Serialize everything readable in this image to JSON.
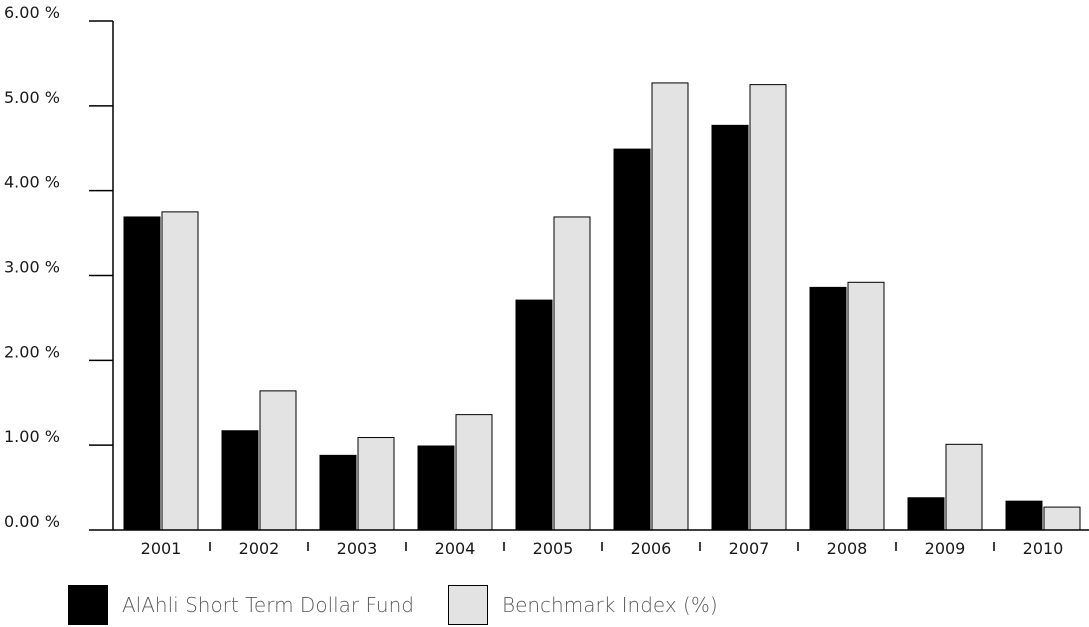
{
  "chart_data": {
    "type": "bar",
    "categories": [
      "2001",
      "2002",
      "2003",
      "2004",
      "2005",
      "2006",
      "2007",
      "2008",
      "2009",
      "2010"
    ],
    "series": [
      {
        "name": "AlAhli Short Term Dollar Fund",
        "color": "#000000",
        "values": [
          3.69,
          1.17,
          0.88,
          0.99,
          2.71,
          4.49,
          4.77,
          2.86,
          0.38,
          0.34
        ]
      },
      {
        "name": "Benchmark Index (%)",
        "color": "#e3e3e3",
        "values": [
          3.75,
          1.64,
          1.09,
          1.36,
          3.69,
          5.27,
          5.25,
          2.92,
          1.01,
          0.27
        ]
      }
    ],
    "y_ticks": [
      "0.00 %",
      "1.00 %",
      "2.00 %",
      "3.00 %",
      "4.00 %",
      "5.00 %",
      "6.00 %"
    ],
    "ylim": [
      0,
      6
    ],
    "grid": false,
    "legend_position": "bottom-left"
  }
}
